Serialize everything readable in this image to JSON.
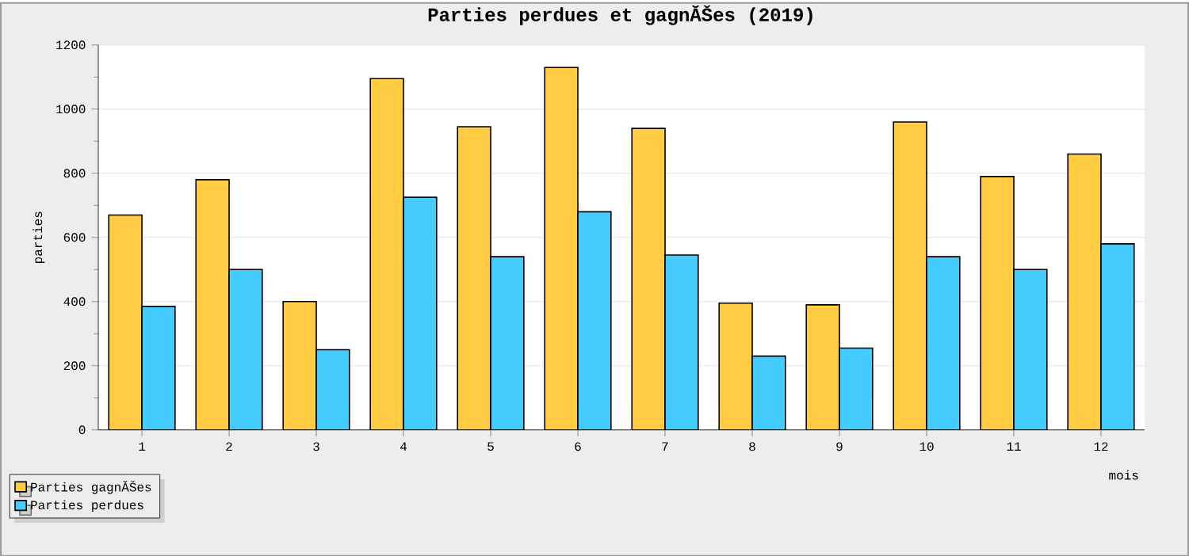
{
  "chart_data": {
    "type": "bar",
    "title": "Parties perdues et gagnĂŠes (2019)",
    "xlabel": "mois",
    "ylabel": "parties",
    "categories": [
      "1",
      "2",
      "3",
      "4",
      "5",
      "6",
      "7",
      "8",
      "9",
      "10",
      "11",
      "12"
    ],
    "series": [
      {
        "name": "Parties gagnĂŠes",
        "color": "#ffcc44",
        "values": [
          670,
          780,
          400,
          1095,
          945,
          1130,
          940,
          395,
          390,
          960,
          790,
          860
        ]
      },
      {
        "name": "Parties perdues",
        "color": "#44ccff",
        "values": [
          385,
          500,
          250,
          725,
          540,
          680,
          545,
          230,
          255,
          540,
          500,
          580
        ]
      }
    ],
    "ylim": [
      0,
      1200
    ],
    "yticks": [
      0,
      200,
      400,
      600,
      800,
      1000,
      1200
    ],
    "grid": "y",
    "legend": "bottom left"
  }
}
